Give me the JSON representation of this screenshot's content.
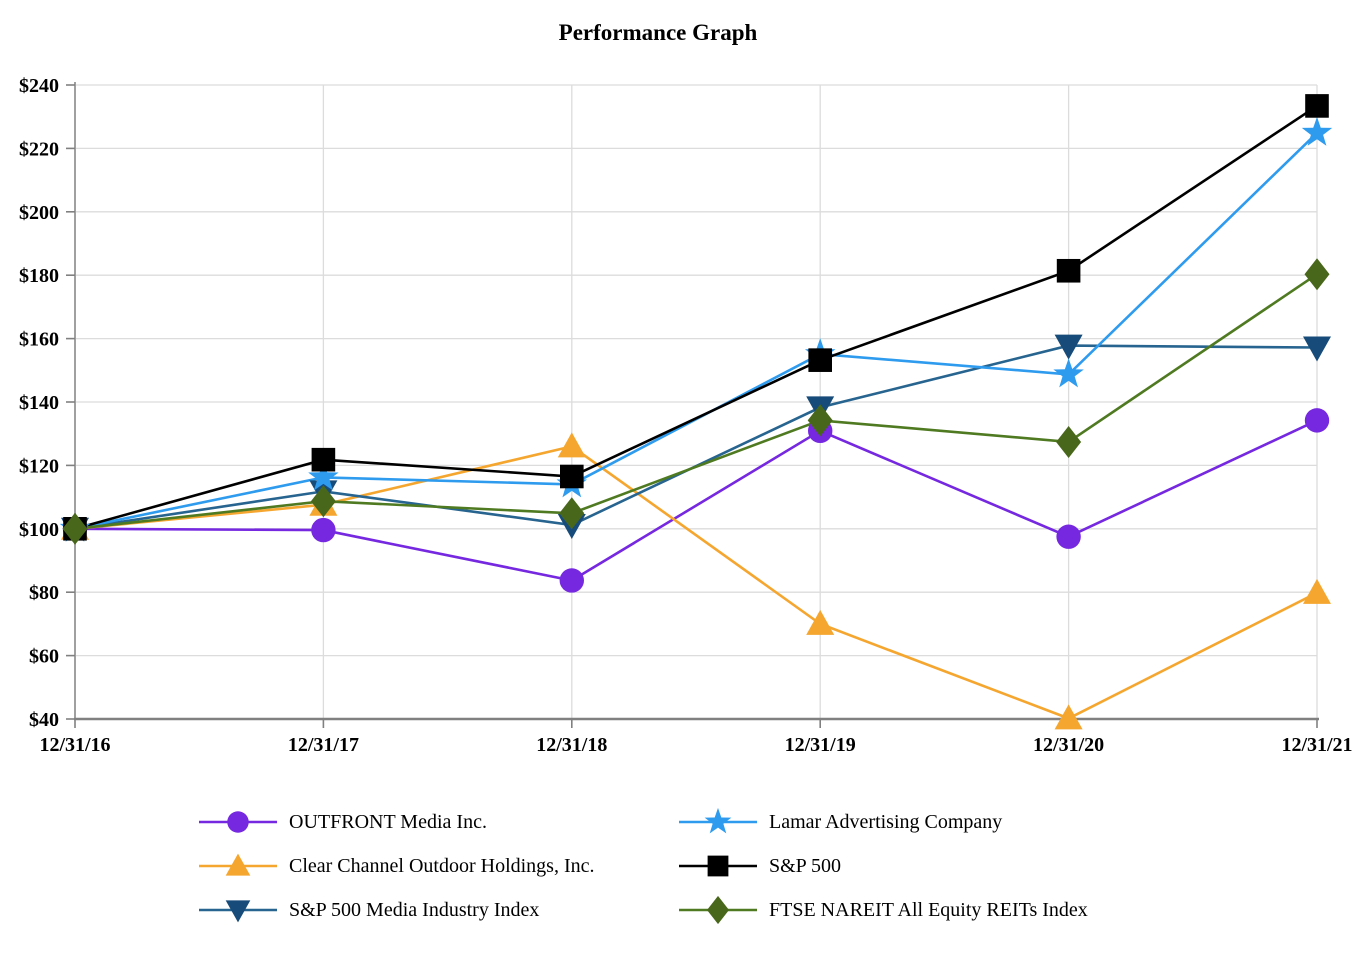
{
  "title": "Performance Graph",
  "chart_data": {
    "type": "line",
    "title": "Performance Graph",
    "categories": [
      "12/31/16",
      "12/31/17",
      "12/31/18",
      "12/31/19",
      "12/31/20",
      "12/31/21"
    ],
    "y_axis": {
      "min": 40,
      "max": 240,
      "step": 20,
      "tick_prefix": "$"
    },
    "y_tick_labels": [
      "$240",
      "$220",
      "$200",
      "$180",
      "$160",
      "$140",
      "$120",
      "$100",
      "$80",
      "$60",
      "$40"
    ],
    "grid": true,
    "legend_position": "bottom-two-columns",
    "series": [
      {
        "name": "OUTFRONT Media Inc.",
        "marker": "circle",
        "color": "#7528E0",
        "line_color": "#7528E0",
        "values": [
          100,
          99.6,
          83.7,
          130.9,
          97.5,
          134.2
        ]
      },
      {
        "name": "Lamar Advertising Company",
        "marker": "star",
        "color": "#2E9BEE",
        "line_color": "#2E9BEE",
        "values": [
          100,
          116.2,
          114.0,
          155.1,
          148.7,
          224.9
        ]
      },
      {
        "name": "Clear Channel Outdoor Holdings, Inc.",
        "marker": "triangle-up",
        "color": "#F5A62F",
        "line_color": "#F5A62F",
        "values": [
          100,
          107.6,
          126.0,
          70.0,
          40.2,
          79.8
        ]
      },
      {
        "name": "S&P 500",
        "marker": "square",
        "color": "#000000",
        "line_color": "#000000",
        "values": [
          100,
          121.8,
          116.5,
          153.2,
          181.4,
          233.4
        ]
      },
      {
        "name": "S&P 500 Media Industry Index",
        "marker": "triangle-down",
        "color": "#174B79",
        "line_color": "#27648F",
        "values": [
          100,
          111.8,
          101.2,
          138.3,
          157.8,
          157.2
        ]
      },
      {
        "name": "FTSE NAREIT All Equity REITs Index",
        "marker": "diamond",
        "color": "#49671B",
        "line_color": "#4F7A21",
        "values": [
          100,
          108.7,
          104.9,
          134.2,
          127.4,
          180.3
        ]
      }
    ],
    "draw_order": [
      0,
      2,
      4,
      1,
      3,
      5
    ],
    "colors": {
      "gridline": "#DCDCDC",
      "axis": "#808080",
      "text": "#000000",
      "background": "#FFFFFF"
    }
  }
}
